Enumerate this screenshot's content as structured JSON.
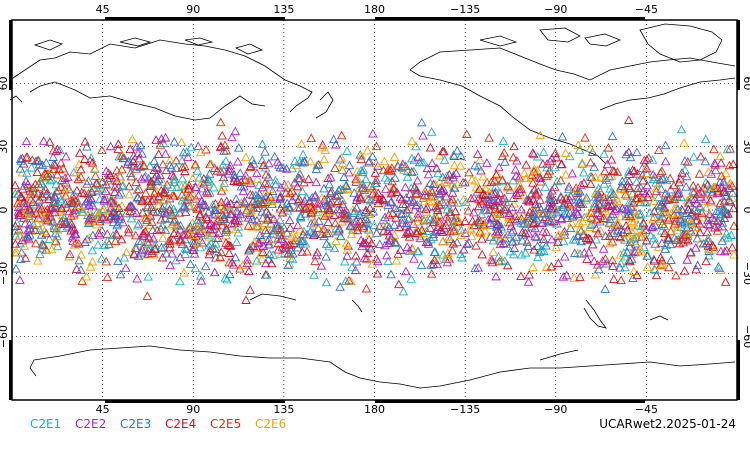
{
  "map": {
    "projection": "cylindrical equidistant",
    "lon_range": [
      0,
      360
    ],
    "lat_range": [
      -90,
      90
    ],
    "top_lon_labels": [
      "45",
      "90",
      "135",
      "180",
      "−135",
      "−90",
      "−45"
    ],
    "bottom_lon_labels": [
      "45",
      "90",
      "135",
      "180",
      "−135",
      "−90",
      "−45"
    ],
    "lat_labels": [
      "60",
      "30",
      "0",
      "−30",
      "−60"
    ],
    "gridlines": true,
    "coastline_color": "#000000",
    "grid_color": "#000000",
    "marker": "open-triangle",
    "observation_lat_band": [
      -45,
      45
    ]
  },
  "legend": [
    {
      "label": "C2E1",
      "color": "#19b2c8"
    },
    {
      "label": "C2E2",
      "color": "#b01cc8"
    },
    {
      "label": "C2E3",
      "color": "#2a72d8"
    },
    {
      "label": "C2E4",
      "color": "#d0102a"
    },
    {
      "label": "C2E5",
      "color": "#e22a0a"
    },
    {
      "label": "C2E6",
      "color": "#f5a400"
    }
  ],
  "product_label": "UCARwet2.2025-01-24"
}
